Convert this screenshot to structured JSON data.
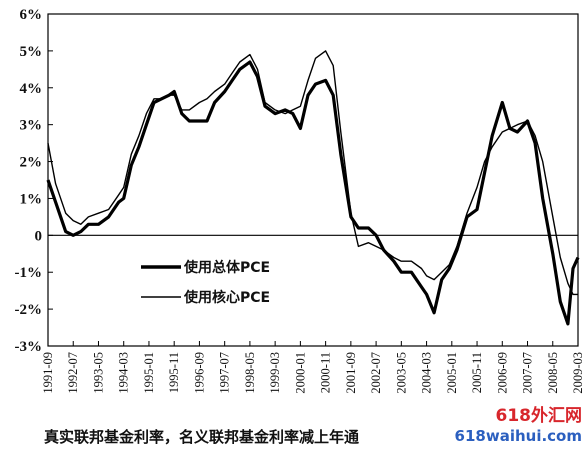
{
  "chart_data": {
    "type": "line",
    "title": "",
    "caption": "真实联邦基金利率，名义联邦基金利率减上年通",
    "xlabel": "",
    "ylabel": "",
    "ylim": [
      -3,
      6
    ],
    "xlim": [
      "1991-09",
      "2009-03"
    ],
    "y_ticks": [
      {
        "value": 6,
        "label": "6%"
      },
      {
        "value": 5,
        "label": "5%"
      },
      {
        "value": 4,
        "label": "4%"
      },
      {
        "value": 3,
        "label": "3%"
      },
      {
        "value": 2,
        "label": "2%"
      },
      {
        "value": 1,
        "label": "1%"
      },
      {
        "value": 0,
        "label": "0"
      },
      {
        "value": -1,
        "label": "-1%"
      },
      {
        "value": -2,
        "label": "-2%"
      },
      {
        "value": -3,
        "label": "-3%"
      }
    ],
    "x_ticks": [
      "1991-09",
      "1992-07",
      "1993-05",
      "1994-03",
      "1995-01",
      "1995-11",
      "1996-09",
      "1997-07",
      "1998-05",
      "1999-03",
      "2000-01",
      "2000-11",
      "2001-09",
      "2002-07",
      "2003-05",
      "2004-03",
      "2005-01",
      "2005-11",
      "2006-09",
      "2007-07",
      "2008-05",
      "2009-03"
    ],
    "grid": false,
    "legend_position": "lower-left",
    "series": [
      {
        "name": "使用总体PCE",
        "color": "#000000",
        "style": "thick",
        "points": [
          [
            "1991-09",
            1.5
          ],
          [
            "1991-12",
            0.9
          ],
          [
            "1992-04",
            0.1
          ],
          [
            "1992-07",
            0.0
          ],
          [
            "1992-10",
            0.1
          ],
          [
            "1993-01",
            0.3
          ],
          [
            "1993-05",
            0.3
          ],
          [
            "1993-09",
            0.5
          ],
          [
            "1994-01",
            0.9
          ],
          [
            "1994-03",
            1.0
          ],
          [
            "1994-06",
            1.9
          ],
          [
            "1994-09",
            2.4
          ],
          [
            "1994-12",
            3.0
          ],
          [
            "1995-03",
            3.6
          ],
          [
            "1995-06",
            3.7
          ],
          [
            "1995-09",
            3.8
          ],
          [
            "1995-11",
            3.9
          ],
          [
            "1996-02",
            3.3
          ],
          [
            "1996-05",
            3.1
          ],
          [
            "1996-09",
            3.1
          ],
          [
            "1996-12",
            3.1
          ],
          [
            "1997-03",
            3.6
          ],
          [
            "1997-07",
            3.9
          ],
          [
            "1997-10",
            4.2
          ],
          [
            "1998-01",
            4.5
          ],
          [
            "1998-05",
            4.7
          ],
          [
            "1998-08",
            4.3
          ],
          [
            "1998-11",
            3.5
          ],
          [
            "1999-03",
            3.3
          ],
          [
            "1999-07",
            3.4
          ],
          [
            "1999-10",
            3.3
          ],
          [
            "2000-01",
            2.9
          ],
          [
            "2000-04",
            3.8
          ],
          [
            "2000-07",
            4.1
          ],
          [
            "2000-11",
            4.2
          ],
          [
            "2001-02",
            3.8
          ],
          [
            "2001-05",
            2.2
          ],
          [
            "2001-09",
            0.5
          ],
          [
            "2001-12",
            0.2
          ],
          [
            "2002-04",
            0.2
          ],
          [
            "2002-07",
            0.0
          ],
          [
            "2002-10",
            -0.4
          ],
          [
            "2003-02",
            -0.7
          ],
          [
            "2003-05",
            -1.0
          ],
          [
            "2003-09",
            -1.0
          ],
          [
            "2004-01",
            -1.4
          ],
          [
            "2004-03",
            -1.6
          ],
          [
            "2004-06",
            -2.1
          ],
          [
            "2004-09",
            -1.2
          ],
          [
            "2004-12",
            -0.9
          ],
          [
            "2005-03",
            -0.4
          ],
          [
            "2005-07",
            0.5
          ],
          [
            "2005-11",
            0.7
          ],
          [
            "2006-02",
            1.7
          ],
          [
            "2006-05",
            2.7
          ],
          [
            "2006-09",
            3.6
          ],
          [
            "2006-12",
            2.9
          ],
          [
            "2007-03",
            2.8
          ],
          [
            "2007-07",
            3.1
          ],
          [
            "2007-10",
            2.5
          ],
          [
            "2008-01",
            1.0
          ],
          [
            "2008-05",
            -0.5
          ],
          [
            "2008-08",
            -1.8
          ],
          [
            "2008-11",
            -2.4
          ],
          [
            "2009-01",
            -0.9
          ],
          [
            "2009-03",
            -0.6
          ]
        ]
      },
      {
        "name": "使用核心PCE",
        "color": "#000000",
        "style": "thin",
        "points": [
          [
            "1991-09",
            2.5
          ],
          [
            "1991-12",
            1.4
          ],
          [
            "1992-04",
            0.6
          ],
          [
            "1992-07",
            0.4
          ],
          [
            "1992-10",
            0.3
          ],
          [
            "1993-01",
            0.5
          ],
          [
            "1993-05",
            0.6
          ],
          [
            "1993-09",
            0.7
          ],
          [
            "1994-01",
            1.1
          ],
          [
            "1994-03",
            1.3
          ],
          [
            "1994-06",
            2.2
          ],
          [
            "1994-09",
            2.7
          ],
          [
            "1994-12",
            3.3
          ],
          [
            "1995-03",
            3.7
          ],
          [
            "1995-06",
            3.7
          ],
          [
            "1995-09",
            3.8
          ],
          [
            "1995-11",
            3.8
          ],
          [
            "1996-02",
            3.4
          ],
          [
            "1996-05",
            3.4
          ],
          [
            "1996-09",
            3.6
          ],
          [
            "1996-12",
            3.7
          ],
          [
            "1997-03",
            3.9
          ],
          [
            "1997-07",
            4.1
          ],
          [
            "1997-10",
            4.4
          ],
          [
            "1998-01",
            4.7
          ],
          [
            "1998-05",
            4.9
          ],
          [
            "1998-08",
            4.5
          ],
          [
            "1998-11",
            3.6
          ],
          [
            "1999-03",
            3.4
          ],
          [
            "1999-07",
            3.3
          ],
          [
            "1999-10",
            3.4
          ],
          [
            "2000-01",
            3.5
          ],
          [
            "2000-04",
            4.2
          ],
          [
            "2000-07",
            4.8
          ],
          [
            "2000-11",
            5.0
          ],
          [
            "2001-02",
            4.6
          ],
          [
            "2001-05",
            2.8
          ],
          [
            "2001-09",
            0.6
          ],
          [
            "2001-12",
            -0.3
          ],
          [
            "2002-04",
            -0.2
          ],
          [
            "2002-07",
            -0.3
          ],
          [
            "2002-10",
            -0.4
          ],
          [
            "2003-02",
            -0.6
          ],
          [
            "2003-05",
            -0.7
          ],
          [
            "2003-09",
            -0.7
          ],
          [
            "2004-01",
            -0.9
          ],
          [
            "2004-03",
            -1.1
          ],
          [
            "2004-06",
            -1.2
          ],
          [
            "2004-09",
            -1.0
          ],
          [
            "2004-12",
            -0.8
          ],
          [
            "2005-03",
            -0.3
          ],
          [
            "2005-07",
            0.6
          ],
          [
            "2005-11",
            1.3
          ],
          [
            "2006-02",
            2.0
          ],
          [
            "2006-05",
            2.4
          ],
          [
            "2006-09",
            2.8
          ],
          [
            "2006-12",
            2.9
          ],
          [
            "2007-03",
            3.0
          ],
          [
            "2007-07",
            3.1
          ],
          [
            "2007-10",
            2.7
          ],
          [
            "2008-01",
            2.0
          ],
          [
            "2008-05",
            0.5
          ],
          [
            "2008-08",
            -0.6
          ],
          [
            "2008-11",
            -1.3
          ],
          [
            "2009-01",
            -1.6
          ],
          [
            "2009-03",
            -1.6
          ]
        ]
      }
    ]
  },
  "watermark": {
    "line1": "618外汇网",
    "line2": "618waihui.com"
  }
}
